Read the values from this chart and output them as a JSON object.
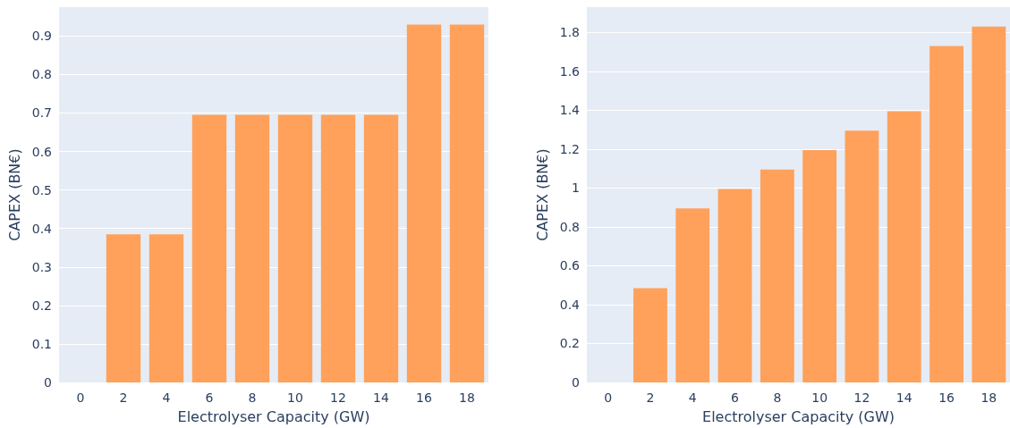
{
  "chart_data": [
    {
      "type": "bar",
      "xlabel": "Electrolyser Capacity (GW)",
      "ylabel": "CAPEX (BN€)",
      "categories": [
        "0",
        "2",
        "4",
        "6",
        "8",
        "10",
        "12",
        "14",
        "16",
        "18"
      ],
      "values": [
        0,
        0.385,
        0.385,
        0.695,
        0.695,
        0.695,
        0.695,
        0.695,
        0.93,
        0.93
      ],
      "color": "#ffa15a",
      "ylim": [
        0,
        0.975
      ],
      "yticks": [
        0,
        0.1,
        0.2,
        0.3,
        0.4,
        0.5,
        0.6,
        0.7,
        0.8,
        0.9
      ],
      "grid": "y"
    },
    {
      "type": "bar",
      "xlabel": "Electrolyser Capacity (GW)",
      "ylabel": "CAPEX (BN€)",
      "categories": [
        "0",
        "2",
        "4",
        "6",
        "8",
        "10",
        "12",
        "14",
        "16",
        "18"
      ],
      "values": [
        0,
        0.485,
        0.895,
        0.995,
        1.095,
        1.195,
        1.295,
        1.395,
        1.73,
        1.83
      ],
      "color": "#ffa15a",
      "ylim": [
        0,
        1.93
      ],
      "yticks": [
        0,
        0.2,
        0.4,
        0.6,
        0.8,
        1,
        1.2,
        1.4,
        1.6,
        1.8
      ],
      "grid": "y"
    }
  ]
}
